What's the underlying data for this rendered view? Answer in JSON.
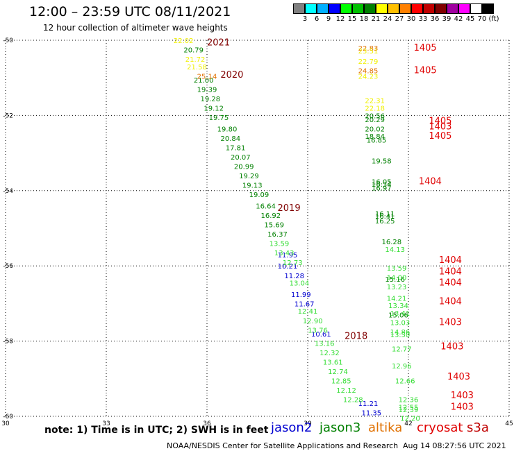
{
  "header": {
    "title": "12:00 – 23:59 UTC 08/11/2021",
    "subtitle": "12 hour collection of altimeter wave heights"
  },
  "colorbar": {
    "colors": [
      "#808080",
      "#00ffff",
      "#00b0ff",
      "#0000ff",
      "#00ff00",
      "#00c000",
      "#008000",
      "#ffff00",
      "#ffc000",
      "#ff8000",
      "#ff0000",
      "#c00000",
      "#800000",
      "#a000a0",
      "#ff00ff",
      "#ffffff",
      "#000000"
    ],
    "labels": [
      "3",
      "6",
      "9",
      "12",
      "15",
      "18",
      "21",
      "24",
      "27",
      "30",
      "33",
      "36",
      "39",
      "42",
      "45",
      "70",
      "(ft)"
    ]
  },
  "chart_data": {
    "type": "scatter",
    "title": "12:00 – 23:59 UTC 08/11/2021",
    "subtitle": "12 hour collection of altimeter wave heights",
    "xlabel": "",
    "ylabel": "",
    "xlim": [
      30,
      45
    ],
    "ylim": [
      -60,
      -50
    ],
    "x_ticks": [
      "30",
      "33",
      "36",
      "39",
      "42",
      "45"
    ],
    "y_ticks": [
      "-50",
      "-52",
      "-54",
      "-56",
      "-58",
      "-60"
    ],
    "grid": true,
    "series": [
      {
        "name": "jason2",
        "color": "#0000d0",
        "points": [
          {
            "x": 38.4,
            "y": -55.7,
            "label": "11.95"
          },
          {
            "x": 38.4,
            "y": -56.0,
            "label": "10.21"
          },
          {
            "x": 38.6,
            "y": -56.25,
            "label": "11.28"
          },
          {
            "x": 38.8,
            "y": -56.75,
            "label": "11.99"
          },
          {
            "x": 38.9,
            "y": -57.0,
            "label": "11.67"
          },
          {
            "x": 39.4,
            "y": -57.8,
            "label": "10.61"
          },
          {
            "x": 40.8,
            "y": -59.65,
            "label": "11.21"
          },
          {
            "x": 40.9,
            "y": -59.9,
            "label": "11.35"
          }
        ]
      },
      {
        "name": "jason3",
        "color": "#008000",
        "points": [
          {
            "x": 35.6,
            "y": -50.25,
            "label": "20.79"
          },
          {
            "x": 35.9,
            "y": -51.05,
            "label": "21.00"
          },
          {
            "x": 36.0,
            "y": -51.3,
            "label": "19.39"
          },
          {
            "x": 36.1,
            "y": -51.55,
            "label": "19.28"
          },
          {
            "x": 36.2,
            "y": -51.8,
            "label": "19.12"
          },
          {
            "x": 36.35,
            "y": -52.05,
            "label": "19.75"
          },
          {
            "x": 36.6,
            "y": -52.35,
            "label": "19.80"
          },
          {
            "x": 36.7,
            "y": -52.6,
            "label": "20.84"
          },
          {
            "x": 36.85,
            "y": -52.85,
            "label": "17.81"
          },
          {
            "x": 37.0,
            "y": -53.1,
            "label": "20.07"
          },
          {
            "x": 37.1,
            "y": -53.35,
            "label": "20.99"
          },
          {
            "x": 37.25,
            "y": -53.6,
            "label": "19.29"
          },
          {
            "x": 37.35,
            "y": -53.85,
            "label": "19.13"
          },
          {
            "x": 37.55,
            "y": -54.1,
            "label": "19.09"
          },
          {
            "x": 37.75,
            "y": -54.4,
            "label": "16.64"
          },
          {
            "x": 37.9,
            "y": -54.65,
            "label": "16.92"
          },
          {
            "x": 38.0,
            "y": -54.9,
            "label": "15.69"
          },
          {
            "x": 38.1,
            "y": -55.15,
            "label": "16.37"
          },
          {
            "x": 41.0,
            "y": -52.0,
            "label": "20.56"
          },
          {
            "x": 41.0,
            "y": -52.1,
            "label": "20.29"
          },
          {
            "x": 41.0,
            "y": -52.35,
            "label": "20.02"
          },
          {
            "x": 41.0,
            "y": -52.55,
            "label": "18.84"
          },
          {
            "x": 41.05,
            "y": -52.65,
            "label": "16.85"
          },
          {
            "x": 41.2,
            "y": -53.2,
            "label": "19.58"
          },
          {
            "x": 41.2,
            "y": -53.75,
            "label": "16.05"
          },
          {
            "x": 41.2,
            "y": -53.82,
            "label": "16.34"
          },
          {
            "x": 41.2,
            "y": -53.92,
            "label": "16.97"
          },
          {
            "x": 41.3,
            "y": -54.6,
            "label": "16.11"
          },
          {
            "x": 41.3,
            "y": -54.67,
            "label": "16.41"
          },
          {
            "x": 41.3,
            "y": -54.8,
            "label": "16.25"
          },
          {
            "x": 41.5,
            "y": -55.35,
            "label": "16.28"
          },
          {
            "x": 41.6,
            "y": -56.35,
            "label": "15.16"
          },
          {
            "x": 41.7,
            "y": -57.3,
            "label": "15.06"
          }
        ]
      },
      {
        "name": "altika",
        "color": "#e07000",
        "points": [
          {
            "x": 40.8,
            "y": -50.2,
            "label": "22.83"
          },
          {
            "x": 40.8,
            "y": -50.8,
            "label": "24.85"
          },
          {
            "x": 36.0,
            "y": -50.95,
            "label": "25.14"
          }
        ]
      },
      {
        "name": "cryosat",
        "color": "#e00000",
        "points": [
          {
            "x": 42.5,
            "y": -50.2,
            "label": "1405"
          },
          {
            "x": 42.5,
            "y": -50.8,
            "label": "1405"
          },
          {
            "x": 42.95,
            "y": -52.15,
            "label": "1405"
          },
          {
            "x": 42.95,
            "y": -52.3,
            "label": "1403"
          },
          {
            "x": 42.95,
            "y": -52.55,
            "label": "1405"
          },
          {
            "x": 42.65,
            "y": -53.75,
            "label": "1404"
          },
          {
            "x": 43.25,
            "y": -55.85,
            "label": "1404"
          },
          {
            "x": 43.25,
            "y": -56.15,
            "label": "1404"
          },
          {
            "x": 43.25,
            "y": -56.45,
            "label": "1404"
          },
          {
            "x": 43.25,
            "y": -56.95,
            "label": "1404"
          },
          {
            "x": 43.25,
            "y": -57.5,
            "label": "1403"
          },
          {
            "x": 43.3,
            "y": -58.15,
            "label": "1403"
          },
          {
            "x": 43.5,
            "y": -58.95,
            "label": "1403"
          },
          {
            "x": 43.6,
            "y": -59.45,
            "label": "1403"
          },
          {
            "x": 43.6,
            "y": -59.75,
            "label": "1403"
          }
        ]
      },
      {
        "name": "s3a",
        "color": "#c00000",
        "points": []
      },
      {
        "name": "",
        "color": "#f0f000",
        "points": [
          {
            "x": 35.3,
            "y": -50.0,
            "label": "22.02"
          },
          {
            "x": 40.8,
            "y": -50.28,
            "label": "23.51"
          },
          {
            "x": 40.8,
            "y": -50.55,
            "label": "22.79"
          },
          {
            "x": 40.8,
            "y": -50.95,
            "label": "24.23"
          },
          {
            "x": 41.0,
            "y": -51.6,
            "label": "22.31"
          },
          {
            "x": 41.0,
            "y": -51.8,
            "label": "22.18"
          },
          {
            "x": 35.65,
            "y": -50.5,
            "label": "21.72"
          },
          {
            "x": 35.7,
            "y": -50.7,
            "label": "21.58"
          }
        ]
      },
      {
        "name": "",
        "color": "#33dd33",
        "points": [
          {
            "x": 38.15,
            "y": -55.4,
            "label": "13.59"
          },
          {
            "x": 38.3,
            "y": -55.65,
            "label": "13.43"
          },
          {
            "x": 38.55,
            "y": -55.9,
            "label": "12.73"
          },
          {
            "x": 38.75,
            "y": -56.45,
            "label": "13.04"
          },
          {
            "x": 39.0,
            "y": -57.2,
            "label": "12.41"
          },
          {
            "x": 39.15,
            "y": -57.45,
            "label": "12.90"
          },
          {
            "x": 39.3,
            "y": -57.7,
            "label": "13.76"
          },
          {
            "x": 39.5,
            "y": -58.05,
            "label": "13.16"
          },
          {
            "x": 39.65,
            "y": -58.3,
            "label": "12.32"
          },
          {
            "x": 39.75,
            "y": -58.55,
            "label": "13.61"
          },
          {
            "x": 39.9,
            "y": -58.8,
            "label": "12.74"
          },
          {
            "x": 40.0,
            "y": -59.05,
            "label": "12.85"
          },
          {
            "x": 40.15,
            "y": -59.3,
            "label": "12.12"
          },
          {
            "x": 40.35,
            "y": -59.55,
            "label": "12.28"
          },
          {
            "x": 41.6,
            "y": -55.55,
            "label": "14.13"
          },
          {
            "x": 41.65,
            "y": -56.05,
            "label": "13.59"
          },
          {
            "x": 41.65,
            "y": -56.3,
            "label": "14.00"
          },
          {
            "x": 41.65,
            "y": -56.55,
            "label": "13.23"
          },
          {
            "x": 41.65,
            "y": -56.85,
            "label": "14.21"
          },
          {
            "x": 41.7,
            "y": -57.05,
            "label": "13.34"
          },
          {
            "x": 41.75,
            "y": -57.25,
            "label": "13.41"
          },
          {
            "x": 41.75,
            "y": -57.5,
            "label": "13.03"
          },
          {
            "x": 41.75,
            "y": -57.75,
            "label": "14.86"
          },
          {
            "x": 41.75,
            "y": -57.82,
            "label": "13.50"
          },
          {
            "x": 41.8,
            "y": -58.2,
            "label": "12.77"
          },
          {
            "x": 41.8,
            "y": -58.65,
            "label": "12.96"
          },
          {
            "x": 41.9,
            "y": -59.05,
            "label": "12.66"
          },
          {
            "x": 42.0,
            "y": -59.55,
            "label": "12.36"
          },
          {
            "x": 42.0,
            "y": -59.75,
            "label": "12.55"
          },
          {
            "x": 42.0,
            "y": -59.82,
            "label": "12.39"
          },
          {
            "x": 42.05,
            "y": -60.05,
            "label": "12.20"
          }
        ]
      }
    ],
    "annotations": [
      {
        "text": "2021",
        "x": 36.0,
        "y": -50.05,
        "color": "#800000"
      },
      {
        "text": "2020",
        "x": 36.4,
        "y": -50.9,
        "color": "#800000"
      },
      {
        "text": "2019",
        "x": 38.1,
        "y": -54.45,
        "color": "#800000"
      },
      {
        "text": "2018",
        "x": 40.1,
        "y": -57.85,
        "color": "#800000"
      }
    ],
    "legend": [
      {
        "name": "jason2",
        "color": "#0000d0"
      },
      {
        "name": "jason3",
        "color": "#008000"
      },
      {
        "name": "altika",
        "color": "#e07000"
      },
      {
        "name": "cryosat",
        "color": "#e00000"
      },
      {
        "name": "s3a",
        "color": "#c00000"
      }
    ]
  },
  "footer": {
    "note": "note:  1) Time is in UTC;  2) SWH is in feet",
    "credit": "NOAA/NESDIS Center for Satellite Applications and Research",
    "timestamp": "Aug 14 08:27:56 UTC 2021"
  }
}
